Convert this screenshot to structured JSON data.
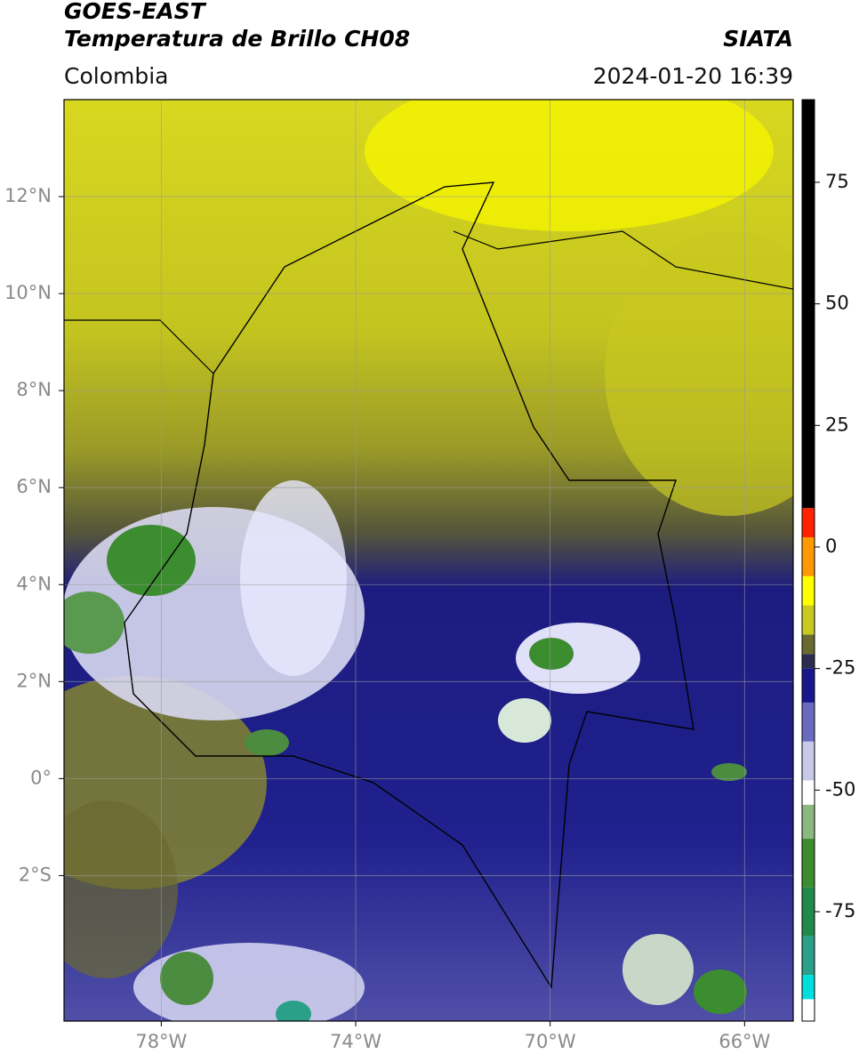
{
  "header": {
    "satellite": "GOES-EAST",
    "product": "Temperatura de Brillo CH08",
    "source": "SIATA",
    "region": "Colombia",
    "datetime": "2024-01-20 16:39"
  },
  "map": {
    "xlim": [
      -80,
      -65
    ],
    "ylim": [
      -5,
      14
    ],
    "xticks": [
      {
        "value": -78,
        "label": "78°W"
      },
      {
        "value": -74,
        "label": "74°W"
      },
      {
        "value": -70,
        "label": "70°W"
      },
      {
        "value": -66,
        "label": "66°W"
      }
    ],
    "yticks": [
      {
        "value": 12,
        "label": "12°N"
      },
      {
        "value": 10,
        "label": "10°N"
      },
      {
        "value": 8,
        "label": "8°N"
      },
      {
        "value": 6,
        "label": "6°N"
      },
      {
        "value": 4,
        "label": "4°N"
      },
      {
        "value": 2,
        "label": "2°N"
      },
      {
        "value": 0,
        "label": "0°"
      },
      {
        "value": -2,
        "label": "2°S"
      }
    ],
    "grid": true
  },
  "colorbar": {
    "lim": [
      -97.5,
      92
    ],
    "ticks": [
      75,
      50,
      25,
      0,
      -25,
      -50,
      -75
    ],
    "segments": [
      {
        "from": -97.5,
        "to": -93,
        "color": "#ffffff"
      },
      {
        "from": -93,
        "to": -88,
        "color": "#00dede"
      },
      {
        "from": -88,
        "to": -80,
        "color": "#2aa088"
      },
      {
        "from": -80,
        "to": -70,
        "color": "#1f8a4a"
      },
      {
        "from": -70,
        "to": -60,
        "color": "#3c8c30"
      },
      {
        "from": -60,
        "to": -53,
        "color": "#8ab880"
      },
      {
        "from": -53,
        "to": -48,
        "color": "#ffffff"
      },
      {
        "from": -48,
        "to": -40,
        "color": "#c8c8e8"
      },
      {
        "from": -40,
        "to": -32,
        "color": "#6a6ac0"
      },
      {
        "from": -32,
        "to": -25,
        "color": "#18188e"
      },
      {
        "from": -25,
        "to": -22,
        "color": "#2c2c50"
      },
      {
        "from": -22,
        "to": -18,
        "color": "#6a6a30"
      },
      {
        "from": -18,
        "to": -12,
        "color": "#c8c820"
      },
      {
        "from": -12,
        "to": -6,
        "color": "#ffff00"
      },
      {
        "from": -6,
        "to": 2,
        "color": "#ff9900"
      },
      {
        "from": 2,
        "to": 8,
        "color": "#ff2200"
      },
      {
        "from": 8,
        "to": 92,
        "color": "#000000"
      }
    ]
  }
}
